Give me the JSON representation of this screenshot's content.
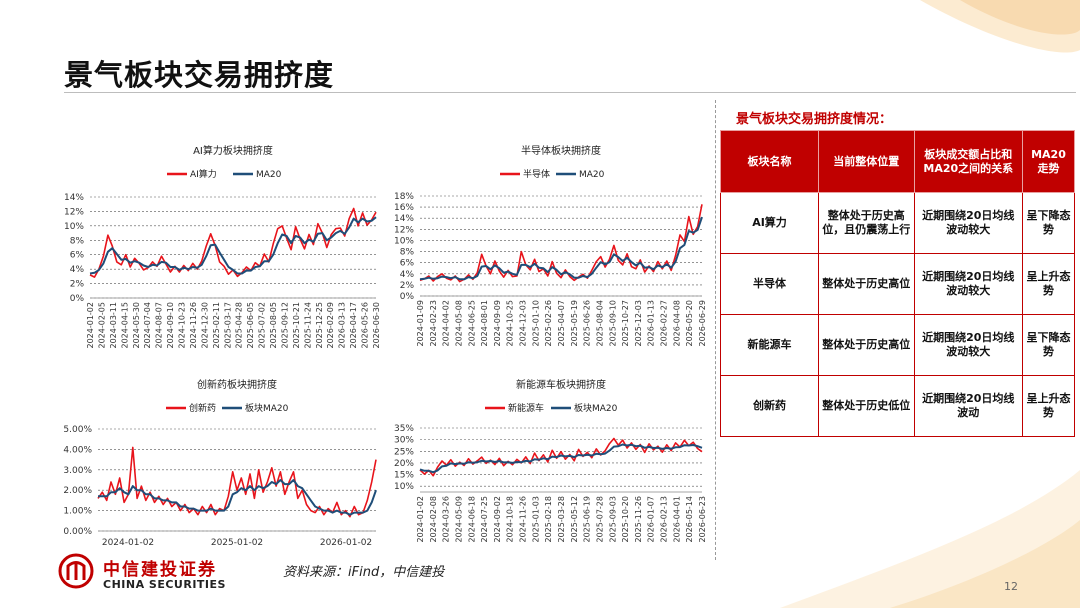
{
  "page": {
    "title": "景气板块交易拥挤度",
    "source": "资料来源：iFind，中信建投",
    "page_number": "12",
    "logo_cn": "中信建投证券",
    "logo_en": "CHINA SECURITIES"
  },
  "colors": {
    "primary": "#e8141b",
    "ma": "#1f4e79",
    "accent": "#c00000"
  },
  "side_panel": {
    "title": "景气板块交易拥挤度情况：",
    "headers": [
      "板块名称",
      "当前整体位置",
      "板块成交额占比和MA20之间的关系",
      "MA20走势"
    ],
    "rows": [
      [
        "AI算力",
        "整体处于历史高位，且仍震荡上行",
        "近期围绕20日均线波动较大",
        "呈下降态势"
      ],
      [
        "半导体",
        "整体处于历史高位",
        "近期围绕20日均线波动较大",
        "呈上升态势"
      ],
      [
        "新能源车",
        "整体处于历史高位",
        "近期围绕20日均线波动较大",
        "呈下降态势"
      ],
      [
        "创新药",
        "整体处于历史低位",
        "近期围绕20日均线波动",
        "呈上升态势"
      ]
    ]
  },
  "chart_data": [
    {
      "type": "line",
      "title": "AI算力板块拥挤度",
      "legend": [
        "AI算力",
        "MA20"
      ],
      "legend_position": "top",
      "y_ticks": [
        "0%",
        "2%",
        "4%",
        "6%",
        "8%",
        "10%",
        "12%",
        "14%"
      ],
      "ylim": [
        0,
        14
      ],
      "x_ticks": [
        "2024-01-02",
        "2024-02-05",
        "2024-03-11",
        "2024-04-15",
        "2024-05-30",
        "2024-07-04",
        "2024-08-07",
        "2024-09-10",
        "2024-10-23",
        "2024-11-26",
        "2024-12-30",
        "2025-02-11",
        "2025-03-17",
        "2025-04-28",
        "2025-06-05",
        "2025-07-02",
        "2025-08-05",
        "2025-09-12",
        "2025-10-21",
        "2025-11-24",
        "2025-12-25",
        "2026-02-09",
        "2026-03-13",
        "2026-04-17",
        "2026-05-26",
        "2026-06-30"
      ],
      "grid": true,
      "series": [
        {
          "name": "AI算力",
          "values": [
            3.2,
            2.9,
            4.0,
            5.8,
            8.7,
            7.2,
            5.0,
            4.6,
            6.0,
            4.3,
            5.5,
            4.8,
            3.9,
            4.2,
            5.0,
            4.4,
            5.8,
            4.7,
            3.6,
            4.4,
            3.6,
            4.5,
            3.8,
            4.8,
            4.0,
            5.1,
            7.2,
            8.9,
            7.3,
            5.0,
            4.4,
            3.3,
            3.9,
            3.0,
            3.5,
            4.3,
            3.8,
            4.9,
            4.4,
            6.1,
            5.0,
            7.5,
            9.6,
            10.0,
            8.3,
            6.7,
            9.9,
            8.2,
            6.8,
            8.8,
            7.4,
            10.3,
            9.0,
            7.0,
            8.8,
            9.6,
            9.7,
            8.6,
            11.0,
            12.4,
            10.0,
            11.8,
            10.1,
            10.8,
            11.9
          ]
        },
        {
          "name": "MA20",
          "values": [
            3.4,
            3.5,
            3.9,
            4.8,
            6.4,
            6.9,
            6.1,
            5.3,
            5.4,
            4.9,
            5.1,
            4.9,
            4.5,
            4.3,
            4.6,
            4.5,
            5.0,
            4.9,
            4.3,
            4.3,
            3.9,
            4.2,
            4.0,
            4.3,
            4.2,
            4.6,
            5.8,
            7.3,
            7.4,
            6.3,
            5.3,
            4.3,
            3.9,
            3.4,
            3.4,
            3.8,
            3.8,
            4.3,
            4.4,
            5.1,
            5.1,
            6.0,
            7.6,
            8.8,
            8.6,
            7.6,
            8.6,
            8.4,
            7.6,
            8.1,
            7.8,
            8.9,
            9.0,
            8.0,
            8.4,
            9.0,
            9.3,
            8.9,
            9.8,
            11.0,
            10.5,
            11.0,
            10.6,
            10.7,
            11.2
          ]
        }
      ]
    },
    {
      "type": "line",
      "title": "半导体板块拥挤度",
      "legend": [
        "半导体",
        "MA20"
      ],
      "legend_position": "top",
      "y_ticks": [
        "0%",
        "2%",
        "4%",
        "6%",
        "8%",
        "10%",
        "12%",
        "14%",
        "16%",
        "18%"
      ],
      "ylim": [
        0,
        18
      ],
      "x_ticks": [
        "2024-01-09",
        "2024-02-23",
        "2024-04-02",
        "2024-05-08",
        "2024-06-25",
        "2024-08-01",
        "2024-09-09",
        "2024-10-25",
        "2024-12-03",
        "2025-01-10",
        "2025-02-26",
        "2025-04-07",
        "2025-05-19",
        "2025-06-26",
        "2025-08-04",
        "2025-09-10",
        "2025-10-27",
        "2025-12-03",
        "2026-01-13",
        "2026-02-27",
        "2026-04-08",
        "2026-05-20",
        "2026-06-29"
      ],
      "grid": true,
      "series": [
        {
          "name": "半导体",
          "values": [
            2.8,
            3.1,
            3.6,
            2.7,
            3.5,
            4.0,
            3.2,
            2.9,
            3.6,
            2.6,
            3.0,
            3.8,
            3.0,
            4.2,
            7.5,
            5.4,
            4.0,
            6.3,
            4.5,
            3.4,
            4.6,
            3.5,
            3.6,
            8.0,
            5.6,
            4.7,
            6.6,
            4.4,
            4.9,
            3.6,
            6.2,
            4.1,
            3.3,
            4.7,
            3.5,
            2.8,
            3.4,
            3.9,
            3.2,
            4.6,
            6.2,
            7.1,
            5.2,
            6.6,
            9.1,
            6.4,
            5.6,
            7.6,
            5.3,
            4.9,
            6.5,
            4.3,
            5.4,
            4.4,
            6.2,
            4.9,
            6.3,
            4.6,
            7.3,
            11.0,
            9.8,
            14.3,
            11.1,
            12.5,
            16.5
          ]
        },
        {
          "name": "MA20",
          "values": [
            3.0,
            3.1,
            3.3,
            3.1,
            3.2,
            3.5,
            3.4,
            3.2,
            3.4,
            3.0,
            3.0,
            3.4,
            3.2,
            3.6,
            5.3,
            5.4,
            4.8,
            5.5,
            5.0,
            4.2,
            4.4,
            4.0,
            3.8,
            5.6,
            5.6,
            5.2,
            5.8,
            5.1,
            5.0,
            4.3,
            5.2,
            4.7,
            3.9,
            4.3,
            3.9,
            3.3,
            3.3,
            3.6,
            3.4,
            4.0,
            5.1,
            6.1,
            5.7,
            6.1,
            7.5,
            7.0,
            6.3,
            6.9,
            6.1,
            5.5,
            6.0,
            5.1,
            5.2,
            4.8,
            5.5,
            5.2,
            5.7,
            5.1,
            6.2,
            8.6,
            9.2,
            11.7,
            11.4,
            11.9,
            14.2
          ]
        }
      ]
    },
    {
      "type": "line",
      "title": "创新药板块拥挤度",
      "legend": [
        "创新药",
        "板块MA20"
      ],
      "legend_position": "top",
      "y_ticks": [
        "0.00%",
        "1.00%",
        "2.00%",
        "3.00%",
        "4.00%",
        "5.00%"
      ],
      "ylim": [
        0,
        5
      ],
      "x_ticks": [
        "2024-01-02",
        "2025-01-02",
        "2026-01-02"
      ],
      "grid": true,
      "series": [
        {
          "name": "创新药",
          "values": [
            1.6,
            1.9,
            1.5,
            2.4,
            1.8,
            2.6,
            1.4,
            1.8,
            4.1,
            1.6,
            2.2,
            1.5,
            1.9,
            1.4,
            1.7,
            1.3,
            1.6,
            1.2,
            1.4,
            1.0,
            1.3,
            0.9,
            1.1,
            0.8,
            1.2,
            0.9,
            1.3,
            0.8,
            1.1,
            1.0,
            1.7,
            2.9,
            2.0,
            2.6,
            1.8,
            2.8,
            1.6,
            3.0,
            1.9,
            2.4,
            3.1,
            2.2,
            2.9,
            1.8,
            2.4,
            2.9,
            1.6,
            2.0,
            1.3,
            1.0,
            0.9,
            1.2,
            0.8,
            1.1,
            0.9,
            1.4,
            0.8,
            1.0,
            0.7,
            1.2,
            0.8,
            0.9,
            1.5,
            2.4,
            3.5
          ]
        },
        {
          "name": "板块MA20",
          "values": [
            1.7,
            1.7,
            1.7,
            1.9,
            1.9,
            2.1,
            1.9,
            1.8,
            2.2,
            2.0,
            2.0,
            1.8,
            1.8,
            1.6,
            1.6,
            1.5,
            1.5,
            1.4,
            1.4,
            1.2,
            1.2,
            1.1,
            1.1,
            1.0,
            1.0,
            1.0,
            1.1,
            1.0,
            1.0,
            1.0,
            1.2,
            1.8,
            1.9,
            2.1,
            2.0,
            2.2,
            2.0,
            2.2,
            2.1,
            2.2,
            2.4,
            2.3,
            2.5,
            2.3,
            2.3,
            2.5,
            2.2,
            2.1,
            1.8,
            1.5,
            1.2,
            1.1,
            1.0,
            1.0,
            0.9,
            1.0,
            0.9,
            0.9,
            0.8,
            0.9,
            0.9,
            0.9,
            1.0,
            1.4,
            2.0
          ]
        }
      ]
    },
    {
      "type": "line",
      "title": "新能源车板块拥挤度",
      "legend": [
        "新能源车",
        "板块MA20"
      ],
      "legend_position": "top",
      "y_ticks": [
        "10%",
        "15%",
        "20%",
        "25%",
        "30%",
        "35%"
      ],
      "ylim": [
        7.5,
        35
      ],
      "x_ticks": [
        "2024-01-02",
        "2024-02-08",
        "2024-03-26",
        "2024-05-09",
        "2024-06-18",
        "2024-07-25",
        "2024-09-02",
        "2024-10-18",
        "2024-11-26",
        "2025-01-03",
        "2025-02-18",
        "2025-03-28",
        "2025-05-12",
        "2025-06-19",
        "2025-07-28",
        "2025-09-03",
        "2025-10-20",
        "2025-11-26",
        "2026-01-07",
        "2026-02-13",
        "2026-04-01",
        "2026-05-14",
        "2026-06-23"
      ],
      "grid": true,
      "series": [
        {
          "name": "新能源车",
          "values": [
            17.0,
            15.2,
            16.8,
            14.5,
            18.2,
            20.8,
            19.0,
            21.4,
            18.6,
            20.3,
            18.9,
            21.8,
            19.5,
            20.9,
            22.5,
            19.8,
            21.2,
            19.3,
            22.0,
            18.8,
            20.7,
            19.2,
            21.5,
            20.0,
            22.6,
            19.7,
            24.2,
            21.0,
            23.5,
            20.4,
            25.4,
            22.0,
            24.8,
            21.6,
            23.6,
            20.9,
            25.8,
            22.8,
            24.5,
            22.2,
            26.0,
            23.4,
            25.2,
            28.3,
            30.5,
            27.6,
            29.8,
            26.4,
            28.6,
            25.8,
            27.9,
            24.5,
            28.2,
            25.6,
            27.2,
            24.6,
            27.8,
            25.3,
            28.6,
            26.8,
            29.7,
            27.4,
            28.9,
            26.2,
            24.8
          ]
        },
        {
          "name": "板块MA20",
          "values": [
            17.2,
            16.6,
            16.6,
            16.0,
            16.8,
            18.5,
            18.8,
            19.8,
            19.5,
            19.8,
            19.6,
            20.3,
            20.1,
            20.3,
            20.9,
            20.6,
            20.8,
            20.4,
            20.8,
            20.2,
            20.3,
            20.0,
            20.4,
            20.3,
            20.9,
            20.6,
            21.6,
            21.4,
            22.0,
            21.6,
            22.7,
            22.5,
            23.2,
            22.8,
            23.0,
            22.5,
            23.4,
            23.2,
            23.5,
            23.2,
            23.9,
            23.7,
            24.0,
            25.3,
            27.0,
            27.2,
            27.9,
            27.5,
            27.8,
            27.2,
            27.4,
            26.5,
            26.9,
            26.4,
            26.5,
            26.0,
            26.4,
            26.1,
            26.7,
            26.8,
            27.6,
            27.5,
            27.7,
            27.2,
            26.5
          ]
        }
      ]
    }
  ]
}
